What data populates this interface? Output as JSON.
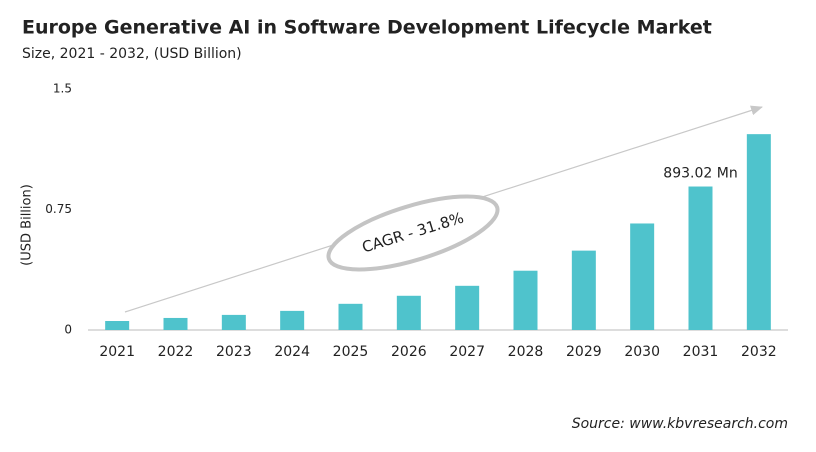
{
  "chart_data": {
    "type": "bar",
    "title": "Europe Generative AI in Software Development Lifecycle Market",
    "subtitle": "Size, 2021 - 2032, (USD Billion)",
    "y_label": "(USD Billion)",
    "categories": [
      "2021",
      "2022",
      "2023",
      "2024",
      "2025",
      "2026",
      "2027",
      "2028",
      "2029",
      "2030",
      "2031",
      "2032"
    ],
    "values": [
      0.056,
      0.075,
      0.094,
      0.119,
      0.163,
      0.213,
      0.275,
      0.369,
      0.494,
      0.663,
      0.89302,
      1.219
    ],
    "value_labels": [
      null,
      null,
      null,
      null,
      null,
      null,
      null,
      null,
      null,
      null,
      "893.02 Mn",
      null
    ],
    "color": "#4fc3cc",
    "ylim": [
      0,
      1.5
    ],
    "yticks": [
      0,
      0.75,
      1.5
    ],
    "grid": false,
    "annotation": "CAGR - 31.8%",
    "source": "Source: www.kbvresearch.com"
  }
}
